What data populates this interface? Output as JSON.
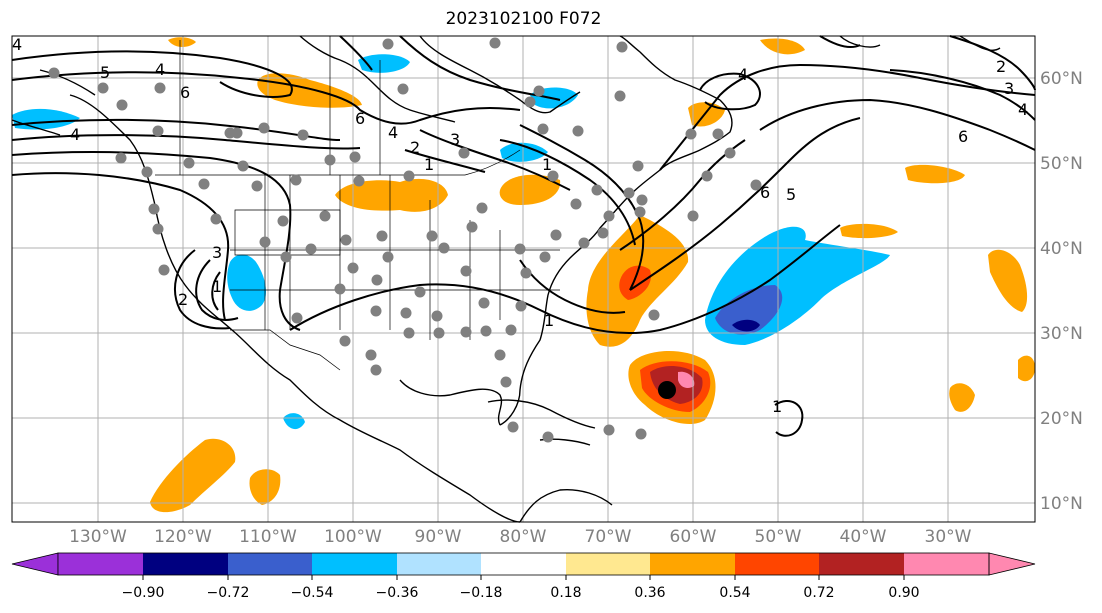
{
  "title": "2023102100 F072",
  "map": {
    "lon_labels": [
      "130°W",
      "120°W",
      "110°W",
      "100°W",
      "90°W",
      "80°W",
      "70°W",
      "60°W",
      "50°W",
      "40°W",
      "30°W"
    ],
    "lat_labels": [
      "60°N",
      "50°N",
      "40°N",
      "30°N",
      "20°N",
      "10°N"
    ],
    "contour_labels": [
      "5",
      "4",
      "6",
      "6",
      "3",
      "2",
      "1",
      "4",
      "1",
      "4",
      "6",
      "5",
      "4",
      "3",
      "2",
      "1",
      "1",
      "1",
      "4",
      "6",
      "2",
      "3",
      "4"
    ],
    "colors": {
      "land_outline": "#000000",
      "grid": "#b0b0b0",
      "station_marker": "#808080",
      "storm_marker": "#000000"
    }
  },
  "colorbar": {
    "tick_labels": [
      "−0.90",
      "−0.72",
      "−0.54",
      "−0.36",
      "−0.18",
      "0.18",
      "0.36",
      "0.54",
      "0.72",
      "0.90"
    ],
    "colors": [
      "#9b30d9",
      "#000080",
      "#3a5fcd",
      "#00bfff",
      "#b0e2ff",
      "#ffffff",
      "#ffe890",
      "#ffa500",
      "#ff4500",
      "#b22222",
      "#ff88b0"
    ]
  }
}
